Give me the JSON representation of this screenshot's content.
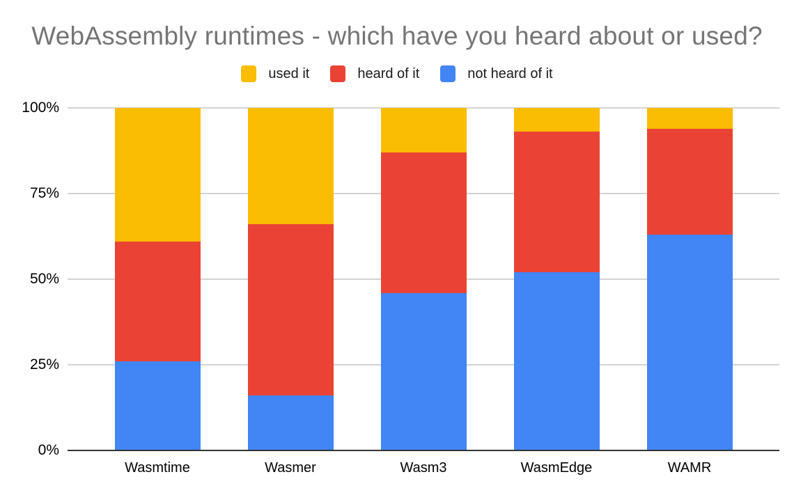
{
  "page": {
    "background": "#ffffff"
  },
  "chart_data": {
    "type": "bar",
    "stacked": true,
    "stack_mode": "percent",
    "stack_order_bottom_to_top": [
      "not heard of it",
      "heard of it",
      "used it"
    ],
    "title": "WebAssembly runtimes - which have you heard about or used?",
    "title_color": "#757575",
    "categories": [
      "Wasmtime",
      "Wasmer",
      "Wasm3",
      "WasmEdge",
      "WAMR"
    ],
    "series": [
      {
        "name": "used it",
        "color": "#FBBC04",
        "values": [
          39,
          34,
          13,
          7,
          6
        ]
      },
      {
        "name": "heard of it",
        "color": "#EA4335",
        "values": [
          35,
          50,
          41,
          41,
          31
        ]
      },
      {
        "name": "not heard of it",
        "color": "#4285F4",
        "values": [
          26,
          16,
          46,
          52,
          63
        ]
      }
    ],
    "xlabel": "",
    "ylabel": "",
    "ylim": [
      0,
      100
    ],
    "yticks": [
      "0%",
      "25%",
      "50%",
      "75%",
      "100%"
    ],
    "grid": true,
    "legend_position": "top"
  }
}
